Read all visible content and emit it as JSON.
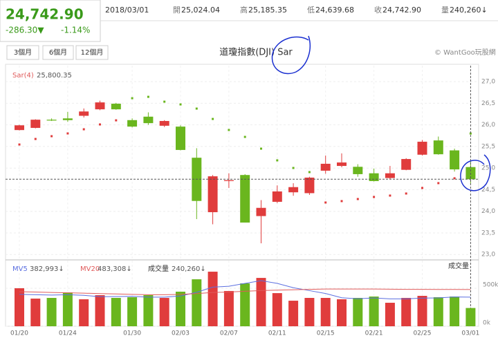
{
  "header": {
    "price": "24,742.90",
    "change": "-286.30▼",
    "pct": "-1.14%",
    "date": "2018/03/01",
    "info": [
      {
        "label": "開",
        "value": "25,024.04"
      },
      {
        "label": "高",
        "value": "25,185.35"
      },
      {
        "label": "低",
        "value": "24,639.68"
      },
      {
        "label": "收",
        "value": "24,742.90"
      },
      {
        "label": "量",
        "value": "240,260↓"
      }
    ]
  },
  "toolbar": {
    "buttons": [
      "3個月",
      "6個月",
      "12個月"
    ],
    "copyright": "© WantGoo玩股網"
  },
  "chart_data": [
    {
      "type": "candlestick",
      "title": "道瓊指數(DJI) Sar",
      "categories": [
        "01/20",
        null,
        null,
        "01/24",
        null,
        null,
        null,
        "01/30",
        null,
        null,
        "02/03",
        null,
        null,
        "02/07",
        null,
        null,
        "02/11",
        null,
        null,
        "02/15",
        null,
        null,
        "02/21",
        null,
        null,
        "02/25",
        null,
        null,
        "03/01"
      ],
      "open": [
        25880,
        25930,
        26120,
        26150,
        26210,
        26360,
        26490,
        26110,
        26190,
        25980,
        25960,
        25240,
        23980,
        24700,
        24840,
        23890,
        24220,
        24440,
        24420,
        24940,
        25050,
        25030,
        24880,
        24770,
        24960,
        25310,
        25640,
        25410,
        25024.04
      ],
      "high": [
        26000,
        26130,
        26150,
        26300,
        26380,
        26560,
        26510,
        26150,
        26290,
        26110,
        25990,
        25460,
        24840,
        24880,
        24860,
        24260,
        24600,
        24650,
        24800,
        25290,
        25340,
        25090,
        24990,
        25050,
        25230,
        25650,
        25730,
        25450,
        25185.35
      ],
      "low": [
        25870,
        25920,
        26090,
        26070,
        26170,
        26340,
        26350,
        25940,
        26000,
        25950,
        25410,
        23820,
        23700,
        24540,
        23740,
        23260,
        24190,
        24360,
        24380,
        24870,
        25020,
        24800,
        24690,
        24740,
        24950,
        25290,
        25310,
        24920,
        24639.68
      ],
      "close": [
        25990,
        26120,
        26100,
        26110,
        26310,
        26520,
        26360,
        25960,
        26040,
        26090,
        25420,
        24240,
        24810,
        24720,
        23740,
        24080,
        24460,
        24560,
        24780,
        25100,
        25130,
        24860,
        24700,
        24880,
        25210,
        25610,
        25320,
        24970,
        24742.9
      ],
      "up_color": "#e03c3c",
      "down_color": "#6ab61e",
      "sar": {
        "name": "Sar(4)",
        "label": "25,800.35",
        "values": [
          25546,
          25674,
          25738,
          25802,
          25898,
          26010,
          26105,
          26617,
          26649,
          26537,
          26473,
          26377,
          26137,
          25882,
          25722,
          25450,
          25179,
          25003,
          24907,
          24204,
          24236,
          24284,
          24332,
          24364,
          24412,
          24540,
          24652,
          24764,
          25800.35
        ]
      },
      "ylim": [
        22940,
        27370
      ],
      "yticks": [
        {
          "value": 27000,
          "label": "27,0"
        },
        {
          "value": 26500,
          "label": "26,5"
        },
        {
          "value": 26000,
          "label": "26,0"
        },
        {
          "value": 25500,
          "label": "25,5"
        },
        {
          "value": 25000,
          "label": "25,0"
        },
        {
          "value": 24500,
          "label": "24,5"
        },
        {
          "value": 24000,
          "label": "24,0"
        },
        {
          "value": 23500,
          "label": "23,5"
        },
        {
          "value": 23000,
          "label": "23,0"
        }
      ],
      "grid": true
    },
    {
      "type": "bar",
      "title": "成交量",
      "series": [
        {
          "name": "成交量",
          "label": "240,260↓",
          "values": [
            500000,
            364000,
            373000,
            445000,
            355000,
            409000,
            373000,
            382000,
            409000,
            373000,
            455000,
            618000,
            718000,
            464000,
            564000,
            636000,
            436000,
            336000,
            373000,
            373000,
            355000,
            373000,
            391000,
            309000,
            373000,
            400000,
            382000,
            391000,
            240260
          ]
        }
      ],
      "lines": [
        {
          "name": "MV5",
          "label": "382,993↓",
          "color": "#5b6fe0",
          "values": [
            420000,
            415000,
            410000,
            415000,
            407000,
            389000,
            391000,
            393000,
            383000,
            383000,
            398000,
            447000,
            515000,
            526000,
            564000,
            600000,
            564000,
            507000,
            469000,
            431000,
            375000,
            362000,
            373000,
            360000,
            360000,
            371000,
            373000,
            385000,
            382993
          ]
        },
        {
          "name": "MV20",
          "label": "483,308↓",
          "color": "#e05a5a",
          "values": [
            455000,
            450000,
            445000,
            440000,
            435000,
            430000,
            425000,
            420000,
            415000,
            415000,
            420000,
            430000,
            445000,
            450000,
            460000,
            470000,
            475000,
            480000,
            485000,
            490000,
            490000,
            490000,
            490000,
            488000,
            486000,
            485000,
            484000,
            484000,
            483308
          ]
        }
      ],
      "ylim": [
        0,
        855000
      ],
      "yticks": [
        {
          "value": 500000,
          "label": "500k"
        },
        {
          "value": 0,
          "label": "0k"
        }
      ]
    }
  ]
}
